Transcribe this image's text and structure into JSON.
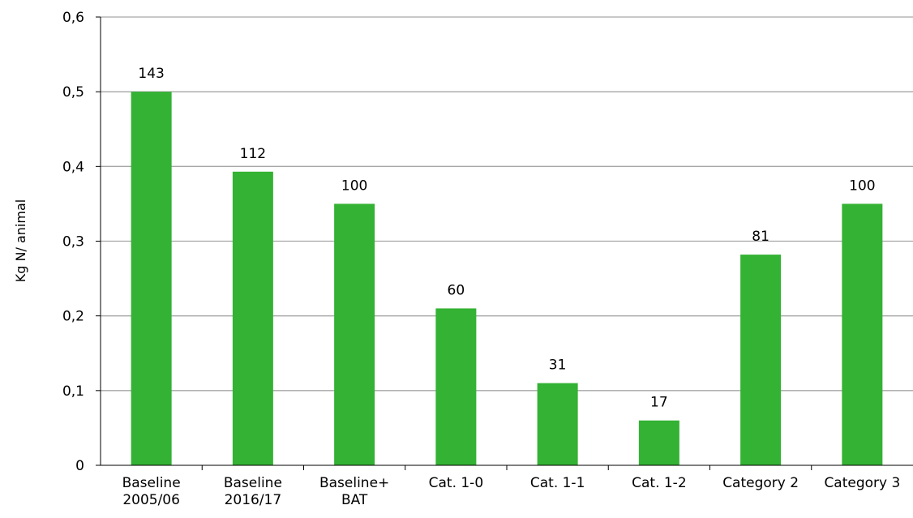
{
  "chart_data": {
    "type": "bar",
    "title": "",
    "xlabel": "",
    "ylabel": "Kg N/ animal",
    "ylim": [
      0,
      0.6
    ],
    "yticks": [
      "0",
      "0,1",
      "0,2",
      "0,3",
      "0,4",
      "0,5",
      "0,6"
    ],
    "grid": true,
    "legend": "none",
    "bar_color": "#33b233",
    "categories": [
      [
        "Baseline",
        "2005/06"
      ],
      [
        "Baseline",
        "2016/17"
      ],
      [
        "Baseline+",
        "BAT"
      ],
      [
        "Cat. 1-0"
      ],
      [
        "Cat. 1-1"
      ],
      [
        "Cat. 1-2"
      ],
      [
        "Category 2"
      ],
      [
        "Category 3"
      ]
    ],
    "values": [
      0.5,
      0.393,
      0.35,
      0.21,
      0.11,
      0.06,
      0.282,
      0.35
    ],
    "data_labels": [
      "143",
      "112",
      "100",
      "60",
      "31",
      "17",
      "81",
      "100"
    ]
  }
}
